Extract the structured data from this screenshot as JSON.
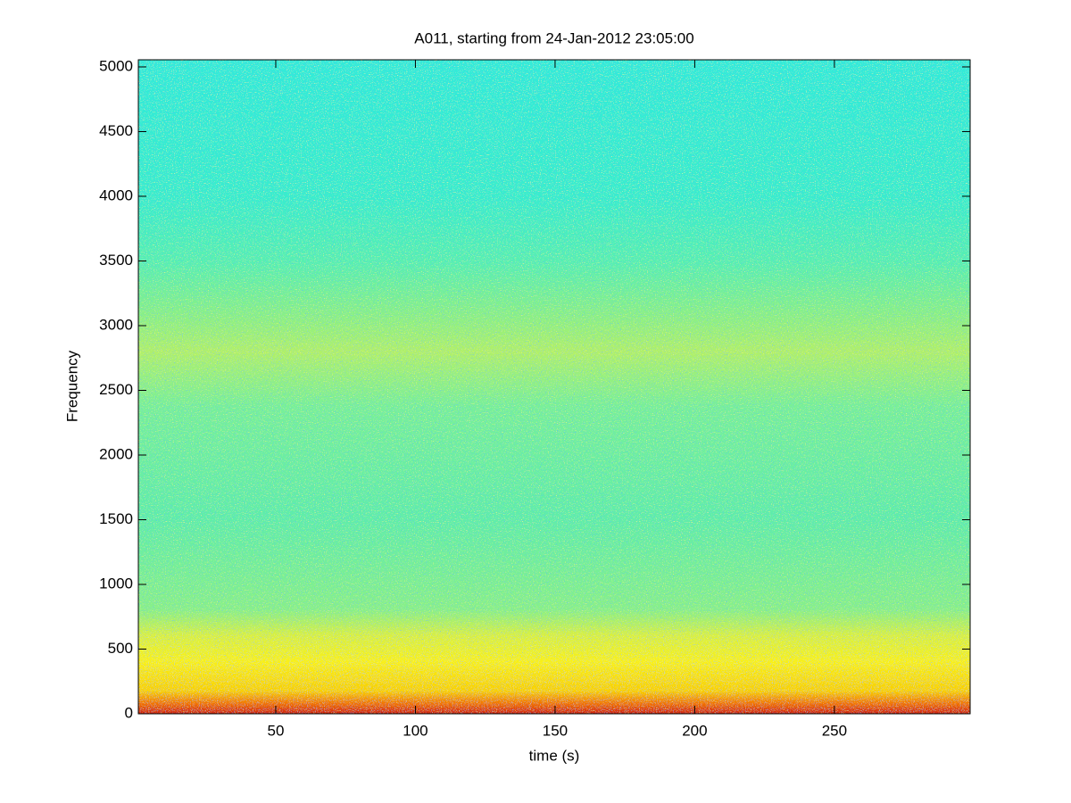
{
  "chart_data": {
    "type": "spectrogram",
    "title": "A011, starting from 24-Jan-2012 23:05:00",
    "xlabel": "time (s)",
    "ylabel": "Frequency",
    "xlim": [
      0.8,
      298.6
    ],
    "xticks": [
      50,
      100,
      150,
      200,
      250
    ],
    "ylim": [
      0,
      5055
    ],
    "yticks": [
      0,
      500,
      1000,
      1500,
      2000,
      2500,
      3000,
      3500,
      4000,
      4500,
      5000
    ]
  }
}
